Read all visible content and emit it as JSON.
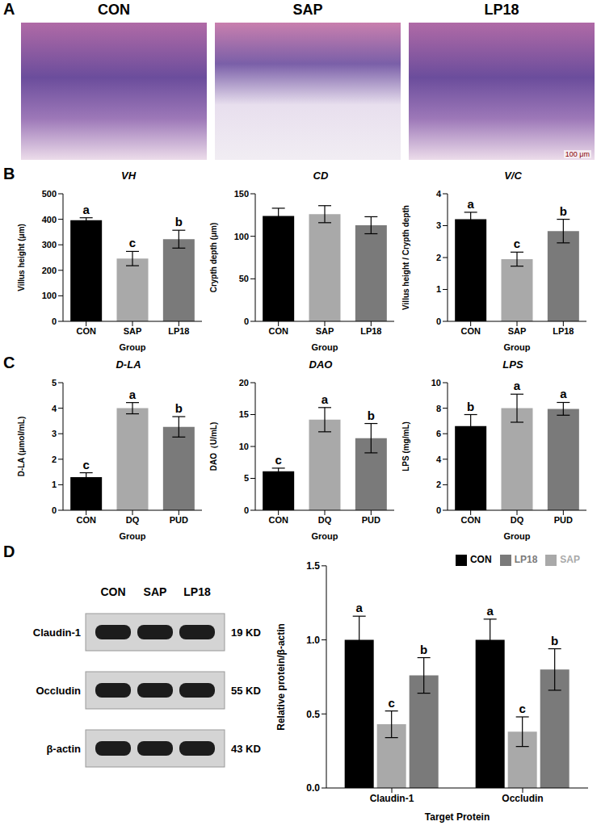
{
  "letters": [
    "A",
    "B",
    "C",
    "D"
  ],
  "panel_a": {
    "titles": [
      "CON",
      "SAP",
      "LP18"
    ],
    "scale_bar": "100 μm"
  },
  "blot": {
    "lanes": [
      "CON",
      "SAP",
      "LP18"
    ],
    "rows": [
      {
        "label": "Claudin-1",
        "size": "19 KD"
      },
      {
        "label": "Occludin",
        "size": "55 KD"
      },
      {
        "label": "β-actin",
        "size": "43 KD"
      }
    ]
  },
  "chart_data": [
    {
      "type": "bar",
      "title": "VH",
      "x_label": "Group",
      "y_label": "Villus height (μm)",
      "categories": [
        "CON",
        "SAP",
        "LP18"
      ],
      "values": [
        396,
        246,
        322
      ],
      "errors": [
        10,
        28,
        35
      ],
      "sig_labels": [
        "a",
        "c",
        "b"
      ],
      "colors": [
        "#000000",
        "#a9a9a9",
        "#7a7a7a"
      ],
      "ylim": [
        0,
        500
      ],
      "yticks": [
        0,
        100,
        200,
        300,
        400,
        500
      ]
    },
    {
      "type": "bar",
      "title": "CD",
      "x_label": "Group",
      "y_label": "Crypth depth (μm)",
      "categories": [
        "CON",
        "SAP",
        "LP18"
      ],
      "values": [
        124,
        126,
        113
      ],
      "errors": [
        9,
        10,
        10
      ],
      "colors": [
        "#000000",
        "#a9a9a9",
        "#7a7a7a"
      ],
      "ylim": [
        0,
        150
      ],
      "yticks": [
        0,
        50,
        100,
        150
      ]
    },
    {
      "type": "bar",
      "title": "V/C",
      "x_label": "Group",
      "y_label": "Villus height / Crypth depth",
      "categories": [
        "CON",
        "SAP",
        "LP18"
      ],
      "values": [
        3.2,
        1.95,
        2.83
      ],
      "errors": [
        0.22,
        0.22,
        0.37
      ],
      "sig_labels": [
        "a",
        "c",
        "b"
      ],
      "colors": [
        "#000000",
        "#a9a9a9",
        "#7a7a7a"
      ],
      "ylim": [
        0,
        4
      ],
      "yticks": [
        0,
        1,
        2,
        3,
        4
      ]
    },
    {
      "type": "bar",
      "title": "D-LA",
      "x_label": "Group",
      "y_label": "D-LA (μmol/mL)",
      "categories": [
        "CON",
        "DQ",
        "PUD"
      ],
      "values": [
        1.3,
        4.0,
        3.27
      ],
      "errors": [
        0.17,
        0.22,
        0.4
      ],
      "sig_labels": [
        "c",
        "a",
        "b"
      ],
      "colors": [
        "#000000",
        "#a9a9a9",
        "#7a7a7a"
      ],
      "ylim": [
        0,
        5
      ],
      "yticks": [
        0,
        1,
        2,
        3,
        4,
        5
      ]
    },
    {
      "type": "bar",
      "title": "DAO",
      "x_label": "Group",
      "y_label": "DAO（U/mL)",
      "categories": [
        "CON",
        "DQ",
        "PUD"
      ],
      "values": [
        6.1,
        14.2,
        11.3
      ],
      "errors": [
        0.5,
        1.9,
        2.3
      ],
      "sig_labels": [
        "c",
        "a",
        "b"
      ],
      "colors": [
        "#000000",
        "#a9a9a9",
        "#7a7a7a"
      ],
      "ylim": [
        0,
        20
      ],
      "yticks": [
        0,
        5,
        10,
        15,
        20
      ]
    },
    {
      "type": "bar",
      "title": "LPS",
      "x_label": "Group",
      "y_label": "LPS (mg/mL)",
      "categories": [
        "CON",
        "DQ",
        "PUD"
      ],
      "values": [
        6.6,
        8.0,
        7.95
      ],
      "errors": [
        0.9,
        1.1,
        0.5
      ],
      "sig_labels": [
        "b",
        "a",
        "a"
      ],
      "colors": [
        "#000000",
        "#a9a9a9",
        "#7a7a7a"
      ],
      "ylim": [
        0,
        10
      ],
      "yticks": [
        0,
        2,
        4,
        6,
        8,
        10
      ]
    },
    {
      "type": "bar",
      "x_label": "Target Protein",
      "y_label": "Relative protein/β-actin",
      "categories": [
        "Claudin-1",
        "Occludin"
      ],
      "series": [
        {
          "name": "CON",
          "color": "#000000",
          "values": [
            1.0,
            1.0
          ],
          "errors": [
            0.16,
            0.14
          ],
          "sig_labels": [
            "a",
            "a"
          ]
        },
        {
          "name": "SAP",
          "color": "#a9a9a9",
          "values": [
            0.43,
            0.38
          ],
          "errors": [
            0.09,
            0.1
          ],
          "sig_labels": [
            "c",
            "c"
          ]
        },
        {
          "name": "LP18",
          "color": "#7a7a7a",
          "values": [
            0.76,
            0.8
          ],
          "errors": [
            0.12,
            0.14
          ],
          "sig_labels": [
            "b",
            "b"
          ]
        }
      ],
      "legend": "top",
      "ylim": [
        0,
        1.5
      ],
      "yticks": [
        {
          "value": 0,
          "label": "0.0"
        },
        {
          "value": 0.5,
          "label": "0.5"
        },
        {
          "value": 1.0,
          "label": "1.0"
        },
        {
          "value": 1.5,
          "label": "1.5"
        }
      ]
    }
  ]
}
